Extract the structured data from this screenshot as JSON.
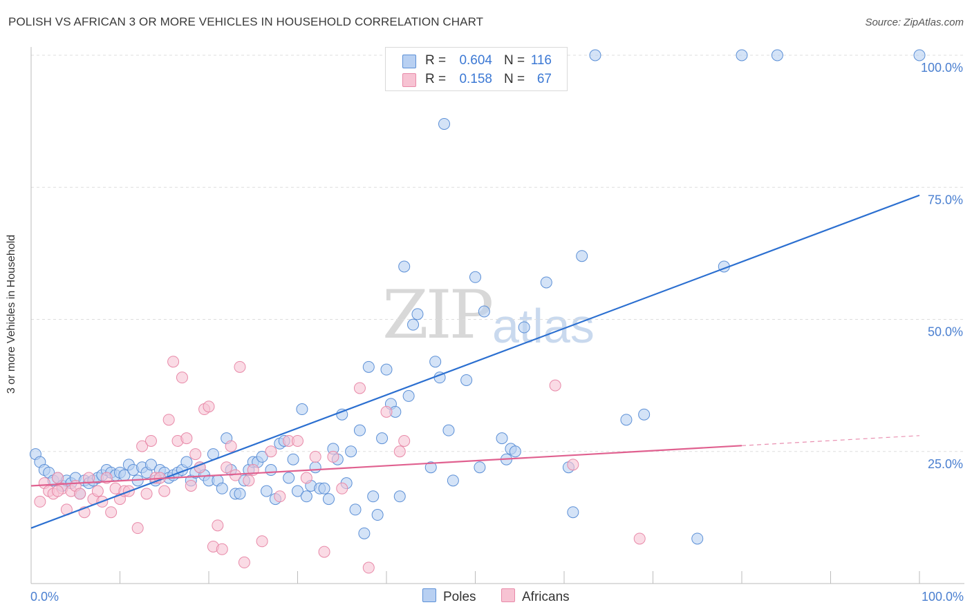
{
  "header": {
    "title": "POLISH VS AFRICAN 3 OR MORE VEHICLES IN HOUSEHOLD CORRELATION CHART",
    "source": "Source: ZipAtlas.com"
  },
  "watermark": {
    "zip": "ZIP",
    "atlas": "atlas"
  },
  "legend": {
    "rows": [
      {
        "r_label": "R =",
        "r_value": "0.604",
        "n_label": "N =",
        "n_value": "116"
      },
      {
        "r_label": "R =",
        "r_value": "0.158",
        "n_label": "N =",
        "n_value": "67"
      }
    ]
  },
  "bottom_legend": {
    "poles": "Poles",
    "africans": "Africans"
  },
  "colors": {
    "poles_fill": "#b8d0f2",
    "poles_stroke": "#5b8fd6",
    "poles_line": "#2b6fd0",
    "africans_fill": "#f7c3d3",
    "africans_stroke": "#e889a8",
    "africans_line": "#e0608f",
    "tick_text": "#4a7fd0",
    "grid": "#dddddd"
  },
  "chart_data": {
    "type": "scatter",
    "title": "POLISH VS AFRICAN 3 OR MORE VEHICLES IN HOUSEHOLD CORRELATION CHART",
    "xlabel": "",
    "ylabel": "3 or more Vehicles in Household",
    "x_ticks": [
      "0.0%",
      "100.0%"
    ],
    "y_ticks": [
      "25.0%",
      "50.0%",
      "75.0%",
      "100.0%"
    ],
    "xlim": [
      0,
      100
    ],
    "ylim": [
      0,
      100
    ],
    "grid": true,
    "legend_position": "top-center",
    "series": [
      {
        "name": "Poles",
        "r": 0.604,
        "n": 116,
        "trend": {
          "x": [
            0,
            100
          ],
          "y": [
            10.5,
            73.5
          ],
          "dashed_from": null
        },
        "points": [
          [
            0.5,
            24.5
          ],
          [
            1,
            23
          ],
          [
            1.5,
            21.5
          ],
          [
            2,
            21
          ],
          [
            2.5,
            19.5
          ],
          [
            3,
            20
          ],
          [
            3.5,
            18.5
          ],
          [
            4,
            19.5
          ],
          [
            4.5,
            19
          ],
          [
            5,
            20
          ],
          [
            5.5,
            17
          ],
          [
            6,
            19.5
          ],
          [
            6.5,
            19
          ],
          [
            7,
            19.5
          ],
          [
            7.5,
            20
          ],
          [
            8,
            20.5
          ],
          [
            8.5,
            21.5
          ],
          [
            9,
            21
          ],
          [
            9.5,
            20.5
          ],
          [
            10,
            21
          ],
          [
            10.5,
            20.5
          ],
          [
            11,
            22.5
          ],
          [
            11.5,
            21.5
          ],
          [
            12,
            19.5
          ],
          [
            12.5,
            22
          ],
          [
            13,
            21
          ],
          [
            13.5,
            22.5
          ],
          [
            14,
            19.5
          ],
          [
            14.5,
            21.5
          ],
          [
            15,
            21
          ],
          [
            15.5,
            20
          ],
          [
            16,
            20.5
          ],
          [
            16.5,
            21
          ],
          [
            17,
            21.5
          ],
          [
            17.5,
            23
          ],
          [
            18,
            19.5
          ],
          [
            18.5,
            21
          ],
          [
            19,
            22
          ],
          [
            19.5,
            20.5
          ],
          [
            20,
            19.5
          ],
          [
            20.5,
            24.5
          ],
          [
            21,
            19.5
          ],
          [
            21.5,
            18
          ],
          [
            22,
            27.5
          ],
          [
            22.5,
            21.5
          ],
          [
            23,
            17
          ],
          [
            23.5,
            17
          ],
          [
            24,
            19.5
          ],
          [
            24.5,
            21.5
          ],
          [
            25,
            23
          ],
          [
            25.5,
            23
          ],
          [
            26,
            24
          ],
          [
            26.5,
            17.5
          ],
          [
            27,
            21.5
          ],
          [
            27.5,
            16
          ],
          [
            28,
            26.5
          ],
          [
            28.5,
            27
          ],
          [
            29,
            20
          ],
          [
            29.5,
            23.5
          ],
          [
            30,
            17.5
          ],
          [
            30.5,
            33
          ],
          [
            31,
            16.5
          ],
          [
            31.5,
            18.5
          ],
          [
            32,
            22
          ],
          [
            32.5,
            18
          ],
          [
            33,
            18
          ],
          [
            33.5,
            16
          ],
          [
            34,
            25.5
          ],
          [
            34.5,
            23.5
          ],
          [
            35,
            32
          ],
          [
            35.5,
            19
          ],
          [
            36,
            25
          ],
          [
            36.5,
            14
          ],
          [
            37,
            29
          ],
          [
            37.5,
            9.5
          ],
          [
            38,
            41
          ],
          [
            38.5,
            16.5
          ],
          [
            39,
            13
          ],
          [
            39.5,
            27.5
          ],
          [
            40,
            40.5
          ],
          [
            40.5,
            34
          ],
          [
            41,
            32.5
          ],
          [
            41.5,
            16.5
          ],
          [
            42,
            60
          ],
          [
            42.5,
            35.5
          ],
          [
            43,
            49
          ],
          [
            43.5,
            51
          ],
          [
            45,
            22
          ],
          [
            45.5,
            42
          ],
          [
            46,
            39
          ],
          [
            46.5,
            87
          ],
          [
            47,
            29
          ],
          [
            47.5,
            19.5
          ],
          [
            49,
            38.5
          ],
          [
            50,
            58
          ],
          [
            50.5,
            22
          ],
          [
            51,
            51.5
          ],
          [
            53,
            27.5
          ],
          [
            53.5,
            23.5
          ],
          [
            54,
            25.5
          ],
          [
            54.5,
            25
          ],
          [
            55.5,
            48.5
          ],
          [
            58,
            57
          ],
          [
            60.5,
            22
          ],
          [
            61,
            13.5
          ],
          [
            62,
            62
          ],
          [
            63.5,
            100
          ],
          [
            67,
            31
          ],
          [
            69,
            32
          ],
          [
            75,
            8.5
          ],
          [
            78,
            60
          ],
          [
            80,
            100
          ],
          [
            84,
            100
          ],
          [
            100,
            100
          ],
          [
            49.5,
            100
          ],
          [
            48,
            100
          ]
        ]
      },
      {
        "name": "Africans",
        "r": 0.158,
        "n": 67,
        "trend": {
          "x": [
            0,
            100
          ],
          "y": [
            18.5,
            28
          ],
          "dashed_from": 80
        },
        "points": [
          [
            1,
            15.5
          ],
          [
            1.5,
            19
          ],
          [
            2,
            17.5
          ],
          [
            2.5,
            17
          ],
          [
            3,
            20
          ],
          [
            3.5,
            18
          ],
          [
            4,
            14
          ],
          [
            4.5,
            17.5
          ],
          [
            5,
            18.5
          ],
          [
            5.5,
            17
          ],
          [
            6,
            13.5
          ],
          [
            6.5,
            20
          ],
          [
            7,
            16
          ],
          [
            7.5,
            17.5
          ],
          [
            8,
            15.5
          ],
          [
            8.5,
            20
          ],
          [
            9,
            13.5
          ],
          [
            9.5,
            18
          ],
          [
            10,
            16
          ],
          [
            10.5,
            17.5
          ],
          [
            11,
            17.5
          ],
          [
            12,
            10.5
          ],
          [
            12.5,
            26
          ],
          [
            13,
            17
          ],
          [
            13.5,
            27
          ],
          [
            14,
            20
          ],
          [
            14.5,
            20
          ],
          [
            15,
            17.5
          ],
          [
            15.5,
            31
          ],
          [
            16,
            42
          ],
          [
            16.5,
            27
          ],
          [
            17,
            39
          ],
          [
            17.5,
            27.5
          ],
          [
            18,
            18.5
          ],
          [
            18.5,
            24.5
          ],
          [
            19,
            22
          ],
          [
            19.5,
            33
          ],
          [
            20,
            33.5
          ],
          [
            20.5,
            7
          ],
          [
            21,
            11
          ],
          [
            21.5,
            6.5
          ],
          [
            22,
            22
          ],
          [
            22.5,
            26
          ],
          [
            23,
            20.5
          ],
          [
            23.5,
            41
          ],
          [
            24,
            4
          ],
          [
            24.5,
            19.5
          ],
          [
            25,
            21.5
          ],
          [
            26,
            8
          ],
          [
            27,
            25
          ],
          [
            28,
            16.5
          ],
          [
            29,
            27
          ],
          [
            30,
            27
          ],
          [
            31,
            20
          ],
          [
            32,
            24
          ],
          [
            33,
            6
          ],
          [
            34,
            24
          ],
          [
            35,
            18
          ],
          [
            37,
            37
          ],
          [
            38,
            3
          ],
          [
            40,
            32.5
          ],
          [
            41.5,
            25
          ],
          [
            42,
            27
          ],
          [
            59,
            37.5
          ],
          [
            61,
            22.5
          ],
          [
            68.5,
            8.5
          ],
          [
            3,
            17.5
          ]
        ]
      }
    ]
  }
}
